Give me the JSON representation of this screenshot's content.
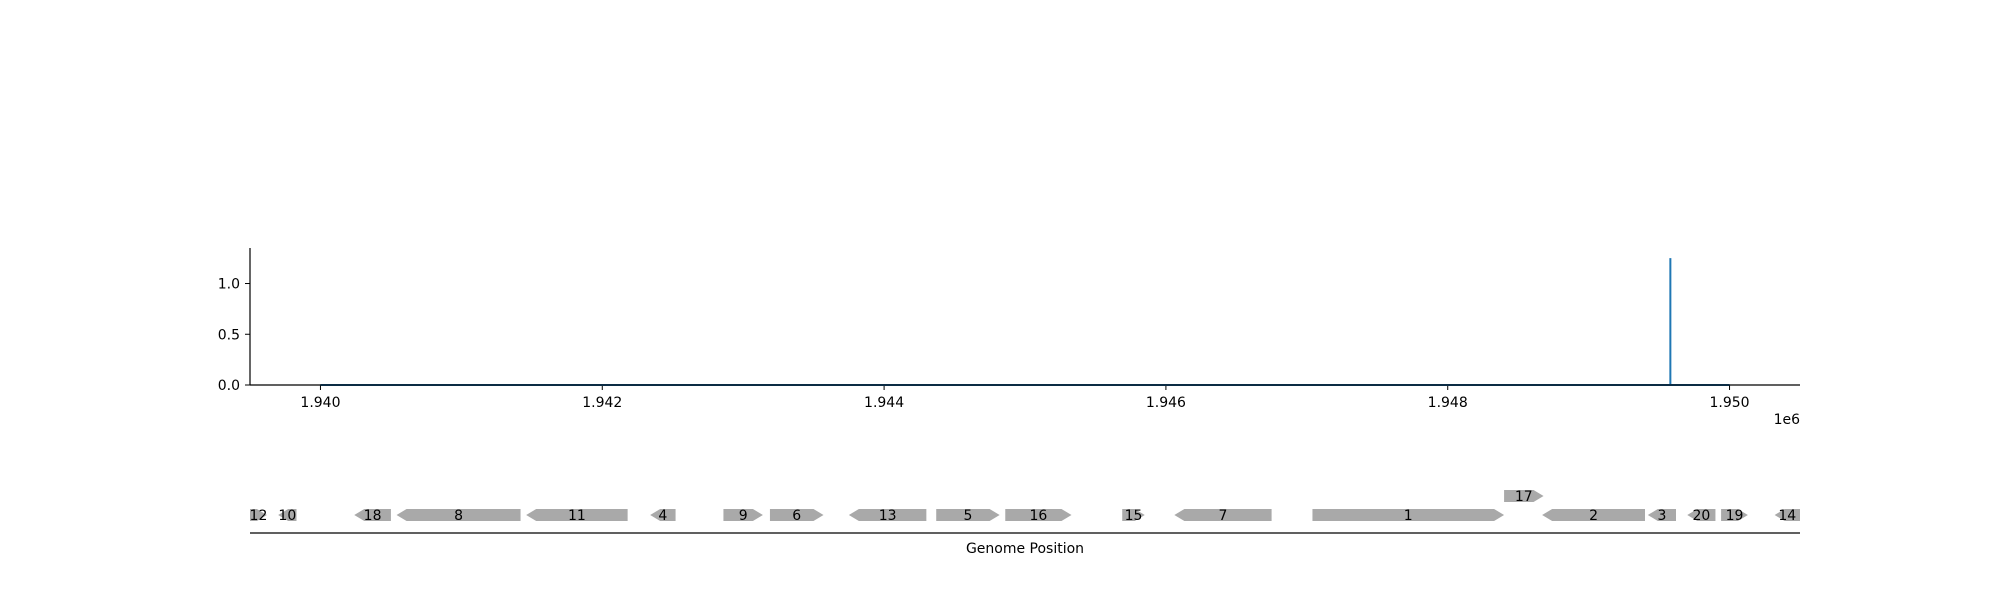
{
  "chart_data": [
    {
      "type": "line",
      "title": "",
      "xlabel": "",
      "ylabel": "",
      "xlim": [
        1939500,
        1950500
      ],
      "ylim": [
        0,
        1.35
      ],
      "x_ticks": [
        1940000,
        1942000,
        1944000,
        1946000,
        1948000,
        1950000
      ],
      "x_tick_labels": [
        "1.940",
        "1.942",
        "1.944",
        "1.946",
        "1.948",
        "1.950"
      ],
      "x_offset_label": "1e6",
      "y_ticks": [
        0.0,
        0.5,
        1.0
      ],
      "y_tick_labels": [
        "0.0",
        "0.5",
        "1.0"
      ],
      "grid": false,
      "series": [
        {
          "color": "#1f77b4",
          "x": [
            1940000,
            1949580,
            1949580,
            1949580,
            1950000
          ],
          "y": [
            0,
            0,
            1.25,
            0,
            0
          ]
        }
      ]
    },
    {
      "type": "gene-track",
      "xlabel": "Genome Position",
      "xlim": [
        1939500,
        1950500
      ],
      "feature_color": "#a9a9a9",
      "features": [
        {
          "label": "12",
          "start": 1939500,
          "end": 1939620,
          "strand": 1,
          "row": 0
        },
        {
          "label": "10",
          "start": 1939700,
          "end": 1939830,
          "strand": -1,
          "row": 0
        },
        {
          "label": "18",
          "start": 1940240,
          "end": 1940500,
          "strand": -1,
          "row": 0
        },
        {
          "label": "8",
          "start": 1940540,
          "end": 1941420,
          "strand": -1,
          "row": 0
        },
        {
          "label": "11",
          "start": 1941460,
          "end": 1942180,
          "strand": -1,
          "row": 0
        },
        {
          "label": "4",
          "start": 1942340,
          "end": 1942520,
          "strand": -1,
          "row": 0
        },
        {
          "label": "9",
          "start": 1942860,
          "end": 1943140,
          "strand": 1,
          "row": 0
        },
        {
          "label": "6",
          "start": 1943190,
          "end": 1943570,
          "strand": 1,
          "row": 0
        },
        {
          "label": "13",
          "start": 1943750,
          "end": 1944300,
          "strand": -1,
          "row": 0
        },
        {
          "label": "5",
          "start": 1944370,
          "end": 1944820,
          "strand": 1,
          "row": 0
        },
        {
          "label": "16",
          "start": 1944860,
          "end": 1945330,
          "strand": 1,
          "row": 0
        },
        {
          "label": "15",
          "start": 1945690,
          "end": 1945850,
          "strand": 1,
          "row": 0
        },
        {
          "label": "7",
          "start": 1946060,
          "end": 1946750,
          "strand": -1,
          "row": 0
        },
        {
          "label": "1",
          "start": 1947040,
          "end": 1948400,
          "strand": 1,
          "row": 0
        },
        {
          "label": "17",
          "start": 1948400,
          "end": 1948680,
          "strand": 1,
          "row": 1
        },
        {
          "label": "2",
          "start": 1948670,
          "end": 1949400,
          "strand": -1,
          "row": 0
        },
        {
          "label": "3",
          "start": 1949420,
          "end": 1949620,
          "strand": -1,
          "row": 0
        },
        {
          "label": "20",
          "start": 1949700,
          "end": 1949900,
          "strand": -1,
          "row": 0
        },
        {
          "label": "19",
          "start": 1949940,
          "end": 1950130,
          "strand": 1,
          "row": 0
        },
        {
          "label": "14",
          "start": 1950320,
          "end": 1950500,
          "strand": -1,
          "row": 0
        }
      ]
    }
  ]
}
